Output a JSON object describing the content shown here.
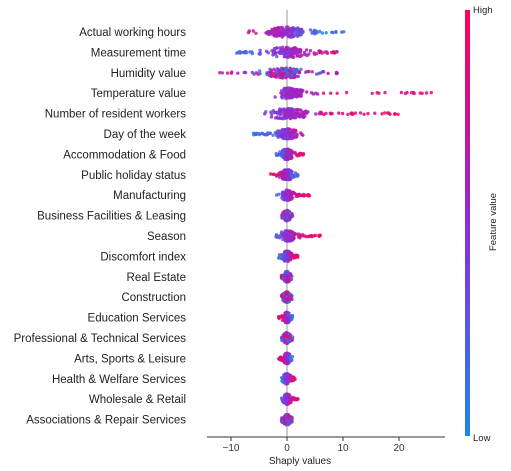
{
  "chart_data": {
    "type": "scatter",
    "subtype": "shap-beeswarm",
    "xlabel": "Shaply values",
    "xlim": [
      -14,
      30
    ],
    "xticks": [
      -10,
      0,
      10,
      20
    ],
    "features": [
      {
        "name": "Actual working hours",
        "min": -7,
        "max": 11,
        "core": [
          -4,
          3
        ],
        "bias": -1
      },
      {
        "name": "Measurement time",
        "min": -9,
        "max": 9,
        "core": [
          -3,
          4
        ],
        "bias": 0.8
      },
      {
        "name": "Humidity value",
        "min": -12,
        "max": 10,
        "core": [
          -4,
          3
        ],
        "bias": 0
      },
      {
        "name": "Temperature value",
        "min": -3,
        "max": 27,
        "core": [
          -1.5,
          3
        ],
        "bias": 1
      },
      {
        "name": "Number of resident workers",
        "min": -4,
        "max": 20,
        "core": [
          -3,
          4
        ],
        "bias": 1
      },
      {
        "name": "Day of the week",
        "min": -6,
        "max": 3,
        "core": [
          -2,
          2
        ],
        "bias": 1
      },
      {
        "name": "Accommodation & Food",
        "min": -2,
        "max": 3,
        "core": [
          -1,
          1
        ],
        "bias": 1
      },
      {
        "name": "Public holiday status",
        "min": -3,
        "max": 2,
        "core": [
          -1,
          1
        ],
        "bias": -1
      },
      {
        "name": "Manufacturing",
        "min": -2,
        "max": 4,
        "core": [
          -1,
          1
        ],
        "bias": 1
      },
      {
        "name": "Business Facilities & Leasing",
        "min": -1,
        "max": 1,
        "core": [
          -0.5,
          0.5
        ],
        "bias": 0
      },
      {
        "name": "Season",
        "min": -2,
        "max": 6,
        "core": [
          -1,
          1.5
        ],
        "bias": 1
      },
      {
        "name": "Discomfort index",
        "min": -1.5,
        "max": 2,
        "core": [
          -0.8,
          0.8
        ],
        "bias": 1
      },
      {
        "name": "Real Estate",
        "min": -1,
        "max": 1,
        "core": [
          -0.5,
          0.5
        ],
        "bias": 0
      },
      {
        "name": "Construction",
        "min": -1,
        "max": 1,
        "core": [
          -0.5,
          0.5
        ],
        "bias": 0
      },
      {
        "name": "Education Services",
        "min": -1.5,
        "max": 1,
        "core": [
          -0.5,
          0.5
        ],
        "bias": -1
      },
      {
        "name": "Professional & Technical Services",
        "min": -1,
        "max": 1,
        "core": [
          -0.5,
          0.5
        ],
        "bias": 0
      },
      {
        "name": "Arts, Sports & Leisure",
        "min": -1.5,
        "max": 1,
        "core": [
          -0.5,
          0.5
        ],
        "bias": -1
      },
      {
        "name": "Health & Welfare Services",
        "min": -1,
        "max": 1.5,
        "core": [
          -0.5,
          0.5
        ],
        "bias": 1
      },
      {
        "name": "Wholesale & Retail",
        "min": -1,
        "max": 2,
        "core": [
          -0.5,
          0.5
        ],
        "bias": 1
      },
      {
        "name": "Associations & Repair Services",
        "min": -1,
        "max": 1,
        "core": [
          -0.5,
          0.5
        ],
        "bias": 0
      }
    ],
    "colorbar": {
      "label": "Feature value",
      "high_label": "High",
      "low_label": "Low",
      "high_color": "#ff0052",
      "mid_color": "#8f2bd6",
      "low_color": "#1e88e5"
    },
    "zero_line": true,
    "grid": false
  }
}
